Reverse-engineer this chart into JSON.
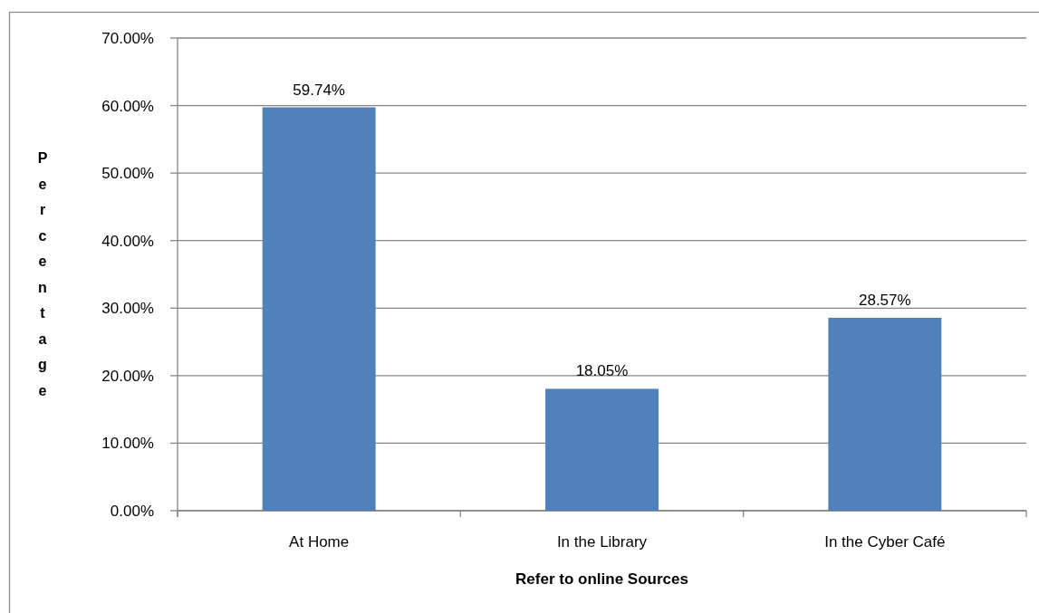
{
  "chart_data": {
    "type": "bar",
    "xlabel": "Refer to online Sources",
    "ylabel": "Percentage",
    "categories": [
      "At Home",
      "In the Library",
      "In the Cyber Café"
    ],
    "values": [
      59.74,
      18.05,
      28.57
    ],
    "color": "#4f81bd",
    "value_labels": [
      "59.74%",
      "18.05%",
      "28.57%"
    ],
    "ylim": [
      0,
      70
    ],
    "yticks": [
      {
        "value": 0,
        "label": "0.00%"
      },
      {
        "value": 10,
        "label": "10.00%"
      },
      {
        "value": 20,
        "label": "20.00%"
      },
      {
        "value": 30,
        "label": "30.00%"
      },
      {
        "value": 40,
        "label": "40.00%"
      },
      {
        "value": 50,
        "label": "50.00%"
      },
      {
        "value": 60,
        "label": "60.00%"
      },
      {
        "value": 70,
        "label": "70.00%"
      }
    ],
    "grid": "y"
  }
}
